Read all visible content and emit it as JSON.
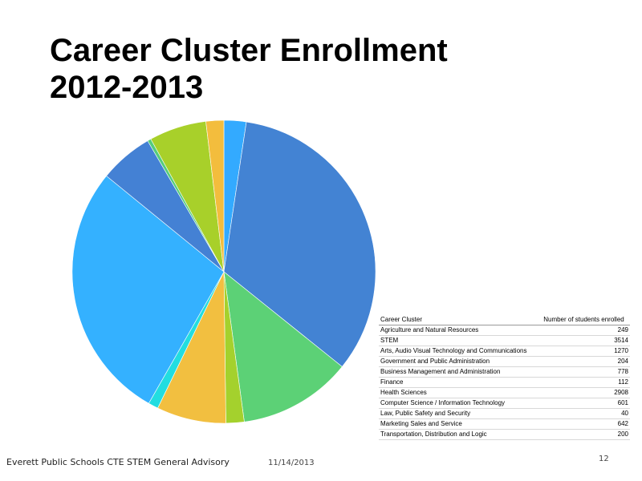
{
  "slide": {
    "title_line1": "Career Cluster Enrollment",
    "title_line2": "2012-2013",
    "footer_org": "Everett Public Schools CTE STEM General Advisory",
    "footer_date": "11/14/2013",
    "page_number": "12"
  },
  "chart_data": {
    "type": "pie",
    "title": "Career Cluster Enrollment 2012-2013",
    "start": "12 o'clock",
    "direction": "clockwise",
    "table_header": [
      "Career Cluster",
      "Number of students enrolled"
    ],
    "slices": [
      {
        "label": "Agriculture and Natural Resources",
        "value": 249,
        "color": "#33aaff"
      },
      {
        "label": "STEM",
        "value": 3514,
        "color": "#4383d3"
      },
      {
        "label": "Arts, Audio Visual Technology and Communications",
        "value": 1270,
        "color": "#5cd176"
      },
      {
        "label": "Government and Public Administration",
        "value": 204,
        "color": "#a4d12d"
      },
      {
        "label": "Business Management and Administration",
        "value": 778,
        "color": "#f2bf40"
      },
      {
        "label": "Finance",
        "value": 112,
        "color": "#22dde0"
      },
      {
        "label": "Health Sciences",
        "value": 2908,
        "color": "#34b1ff"
      },
      {
        "label": "Computer Science / Information Technology",
        "value": 601,
        "color": "#4481d4"
      },
      {
        "label": "Law, Public Safety and Security",
        "value": 40,
        "color": "#55cc7c"
      },
      {
        "label": "Marketing Sales and Service",
        "value": 642,
        "color": "#a8d02a"
      },
      {
        "label": "Transportation, Distribution and Logic",
        "value": 200,
        "color": "#f3bd3d"
      }
    ]
  }
}
